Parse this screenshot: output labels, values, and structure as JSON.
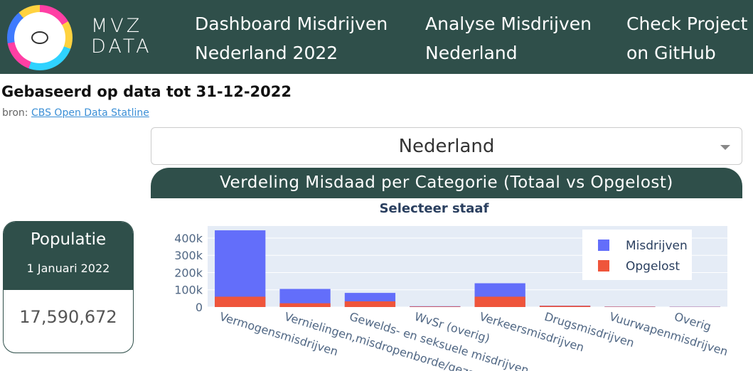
{
  "nav": {
    "logo_text_line1": "MVZ",
    "logo_text_line2": "DATA",
    "links": [
      {
        "line1": "Dashboard Misdrijven",
        "line2": "Nederland 2022"
      },
      {
        "line1": "Analyse Misdrijven",
        "line2": "Nederland"
      },
      {
        "line1": "Check Project",
        "line2": "on GitHub"
      }
    ]
  },
  "heading": "Gebaseerd op data tot 31-12-2022",
  "source": {
    "prefix": "bron: ",
    "link": "CBS Open Data Statline"
  },
  "region_select": {
    "value": "Nederland"
  },
  "chart_header": "Verdeling Misdaad per Categorie (Totaal vs Opgelost)",
  "population": {
    "title": "Populatie",
    "date": "1 Januari 2022",
    "value": "17,590,672"
  },
  "chart_data": {
    "type": "bar",
    "title": "Selecteer staaf",
    "barmode": "overlay",
    "categories": [
      "Vermogensmisdrijven",
      "Vernielingen,misdropenborde/gezag",
      "Gewelds- en seksuele misdrijven",
      "WvSr (overig)",
      "Verkeersmisdrijven",
      "Drugsmisdrijven",
      "Vuurwapenmisdrijven",
      "Overig"
    ],
    "series": [
      {
        "name": "Misdrijven",
        "color": "#636efa",
        "values": [
          445000,
          105000,
          82000,
          5000,
          138000,
          8000,
          3000,
          2000
        ]
      },
      {
        "name": "Opgelost",
        "color": "#ef553b",
        "values": [
          60000,
          22000,
          33000,
          3000,
          60000,
          7000,
          2000,
          1000
        ]
      }
    ],
    "yticks": [
      "0",
      "100k",
      "200k",
      "300k",
      "400k"
    ],
    "ylim": [
      0,
      470000
    ],
    "legend_position": "top-right",
    "grid": true
  }
}
